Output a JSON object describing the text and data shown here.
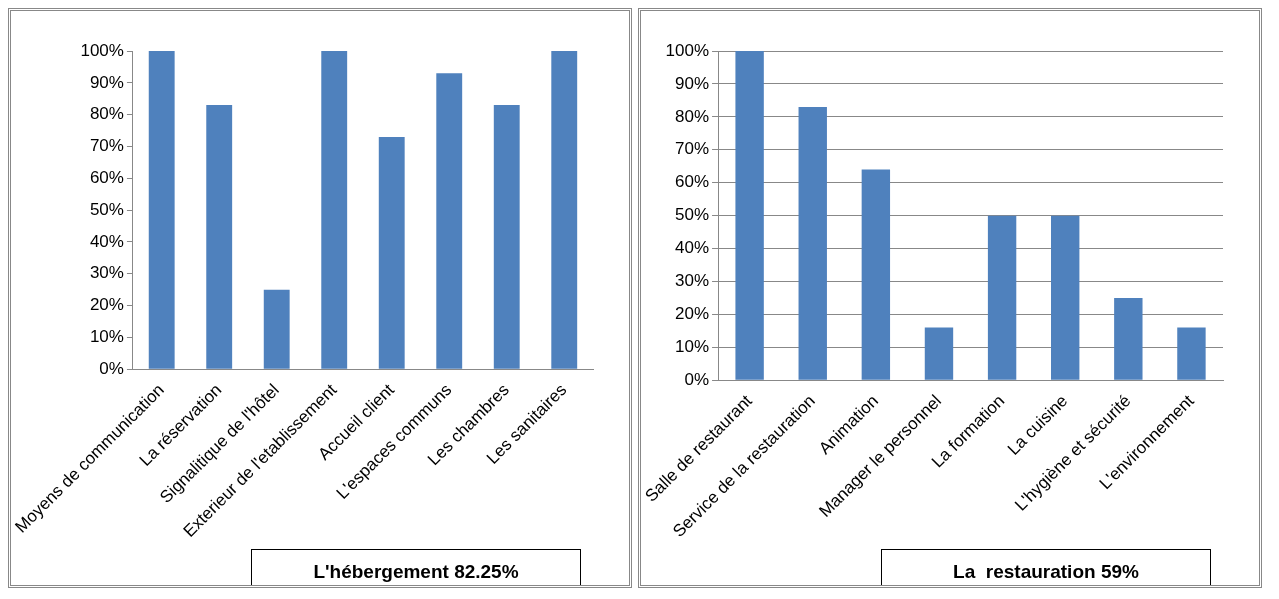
{
  "chart_data": [
    {
      "type": "bar",
      "title": "L'hébergement 82.25%",
      "categories": [
        "Moyens de communication",
        "La réservation",
        "Signalitique de l'hôtel",
        "Exterieur de l'etablissement",
        "Accueil client",
        "L'espaces communs",
        "Les chambres",
        "Les sanitaires"
      ],
      "values": [
        100,
        83,
        25,
        100,
        73,
        93,
        83,
        100
      ],
      "color": "#4f81bd",
      "ylim": [
        0,
        100
      ],
      "yticks": [
        {
          "value": 0,
          "label": "0%"
        },
        {
          "value": 10,
          "label": "10%"
        },
        {
          "value": 20,
          "label": "20%"
        },
        {
          "value": 30,
          "label": "30%"
        },
        {
          "value": 40,
          "label": "40%"
        },
        {
          "value": 50,
          "label": "50%"
        },
        {
          "value": 60,
          "label": "60%"
        },
        {
          "value": 70,
          "label": "70%"
        },
        {
          "value": 80,
          "label": "80%"
        },
        {
          "value": 90,
          "label": "90%"
        },
        {
          "value": 100,
          "label": "100%"
        }
      ],
      "grid": false
    },
    {
      "type": "bar",
      "title": "La  restauration 59%",
      "categories": [
        "Salle de restaurant",
        "Service de la restauration",
        "Animation",
        "Manager le personnel",
        "La formation",
        "La cuisine",
        "L'hygiène et sécurité",
        "L'environnement"
      ],
      "values": [
        100,
        83,
        64,
        16,
        50,
        50,
        25,
        16
      ],
      "color": "#4f81bd",
      "ylim": [
        0,
        100
      ],
      "yticks": [
        {
          "value": 0,
          "label": "0%"
        },
        {
          "value": 10,
          "label": "10%"
        },
        {
          "value": 20,
          "label": "20%"
        },
        {
          "value": 30,
          "label": "30%"
        },
        {
          "value": 40,
          "label": "40%"
        },
        {
          "value": 50,
          "label": "50%"
        },
        {
          "value": 60,
          "label": "60%"
        },
        {
          "value": 70,
          "label": "70%"
        },
        {
          "value": 80,
          "label": "80%"
        },
        {
          "value": 90,
          "label": "90%"
        },
        {
          "value": 100,
          "label": "100%"
        }
      ],
      "grid": "y"
    }
  ]
}
